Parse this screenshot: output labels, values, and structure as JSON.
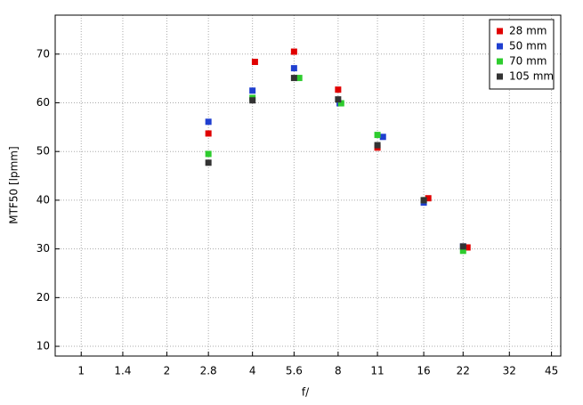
{
  "chart_data": {
    "type": "scatter",
    "x_label": "f/",
    "y_label": "MTF50 [lpmm]",
    "xscale": "log",
    "grid": true,
    "legend": "top-right",
    "xlim": [
      0.81,
      48.5
    ],
    "ylim": [
      8,
      78
    ],
    "xticks": [
      1,
      1.4,
      2,
      2.8,
      4,
      5.6,
      8,
      11,
      16,
      22,
      32,
      45
    ],
    "yticks": [
      10,
      20,
      30,
      40,
      50,
      60,
      70
    ],
    "series": [
      {
        "name": "28 mm",
        "color": "#e00000",
        "x": [
          2.8,
          4.08,
          5.6,
          8,
          11,
          16.6,
          22.8
        ],
        "values": [
          53.7,
          68.4,
          70.5,
          62.7,
          50.8,
          40.4,
          30.3
        ]
      },
      {
        "name": "50 mm",
        "color": "#1f3fd0",
        "x": [
          2.8,
          4,
          5.6,
          8.1,
          11.5,
          16,
          22
        ],
        "values": [
          56.1,
          62.5,
          67.1,
          59.9,
          53.0,
          39.5,
          30.5
        ]
      },
      {
        "name": "70 mm",
        "color": "#2ecc2e",
        "x": [
          2.8,
          4,
          5.84,
          8.2,
          11,
          16,
          22
        ],
        "values": [
          49.5,
          61.0,
          65.1,
          59.9,
          53.4,
          40.0,
          29.6
        ]
      },
      {
        "name": "105 mm",
        "color": "#333333",
        "x": [
          2.8,
          4,
          5.6,
          8,
          11,
          16,
          22
        ],
        "values": [
          47.7,
          60.5,
          65.1,
          60.7,
          51.3,
          40.0,
          30.5
        ]
      }
    ]
  }
}
